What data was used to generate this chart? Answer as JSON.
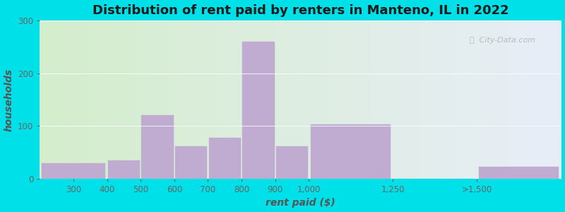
{
  "title": "Distribution of rent paid by renters in Manteno, IL in 2022",
  "xlabel": "rent paid ($)",
  "ylabel": "households",
  "bin_edges": [
    200,
    400,
    500,
    600,
    700,
    800,
    900,
    1000,
    1250,
    1500,
    1750
  ],
  "tick_positions": [
    300,
    400,
    500,
    600,
    700,
    800,
    900,
    1000,
    1250,
    1500
  ],
  "tick_labels": [
    "300",
    "400",
    "500",
    "600",
    "700",
    "800",
    "900",
    "1,000",
    "1,250",
    ">1,500"
  ],
  "values": [
    30,
    35,
    120,
    62,
    78,
    260,
    62,
    103,
    0,
    22
  ],
  "bar_color": "#c0acd0",
  "bar_edgecolor": "#c0acd0",
  "background_outer": "#00e0e8",
  "background_inner_left": "#d4edcc",
  "background_inner_right": "#e8eef8",
  "ylim": [
    0,
    300
  ],
  "xlim": [
    200,
    1750
  ],
  "yticks": [
    0,
    100,
    200,
    300
  ],
  "title_fontsize": 13,
  "axis_label_fontsize": 10,
  "tick_fontsize": 8.5,
  "watermark_text": "City-Data.com"
}
